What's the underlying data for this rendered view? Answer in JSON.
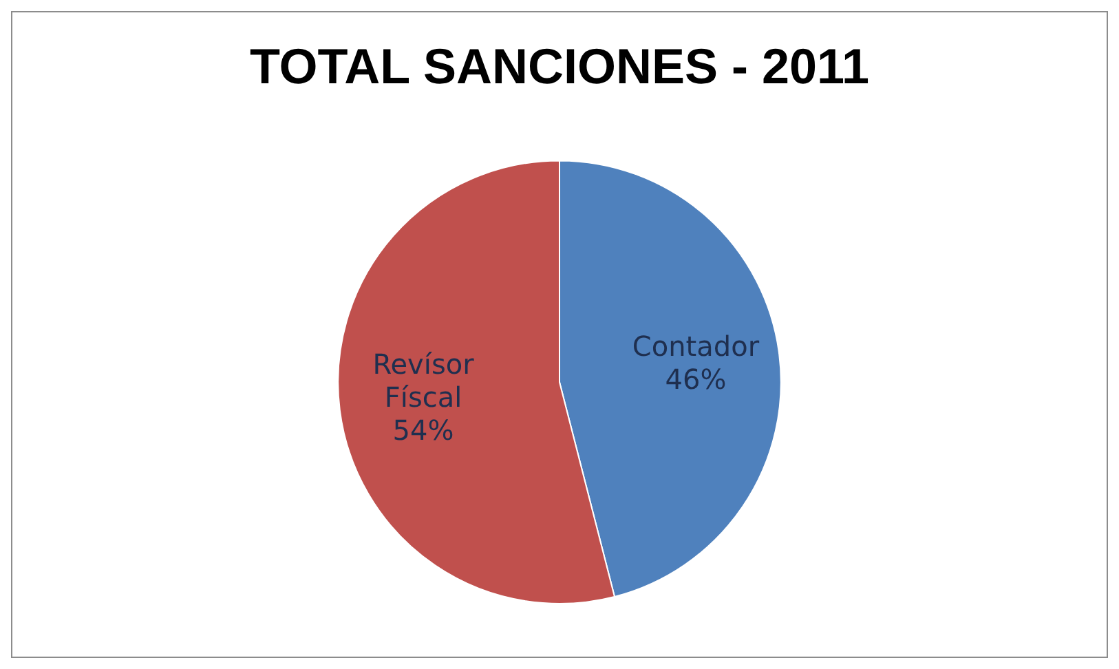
{
  "chart_data": {
    "type": "pie",
    "title": "TOTAL SANCIONES - 2011",
    "categories": [
      "Contador",
      "Revísor Físcal"
    ],
    "values": [
      46,
      54
    ],
    "colors": [
      "#4f81bd",
      "#c0504d"
    ],
    "value_labels": [
      "46%",
      "54%"
    ],
    "legend": false
  }
}
